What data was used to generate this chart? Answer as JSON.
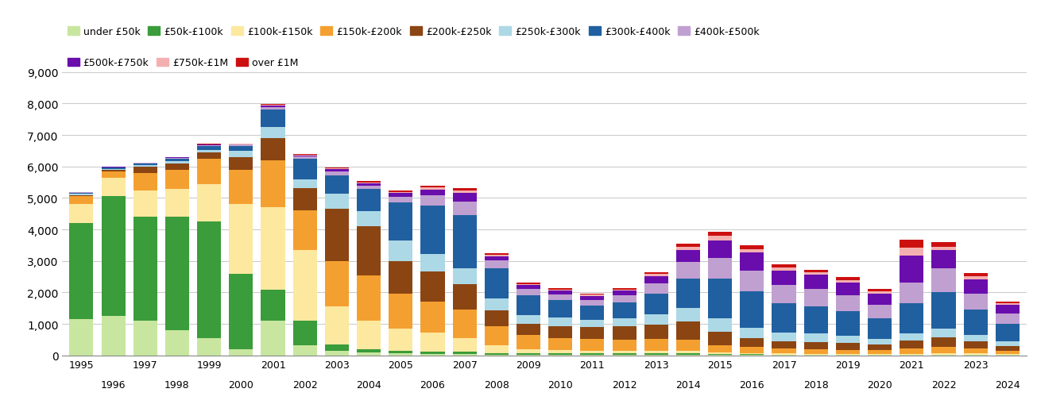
{
  "years": [
    1995,
    1996,
    1997,
    1998,
    1999,
    2000,
    2001,
    2002,
    2003,
    2004,
    2005,
    2006,
    2007,
    2008,
    2009,
    2010,
    2011,
    2012,
    2013,
    2014,
    2015,
    2016,
    2017,
    2018,
    2019,
    2020,
    2021,
    2022,
    2023,
    2024
  ],
  "categories": [
    "under £50k",
    "£50k-£100k",
    "£100k-£150k",
    "£150k-£200k",
    "£200k-£250k",
    "£250k-£300k",
    "£300k-£400k",
    "£400k-£500k",
    "£500k-£750k",
    "£750k-£1M",
    "over £1M"
  ],
  "colors": [
    "#c8e6a0",
    "#3a9c3a",
    "#fde8a0",
    "#f4a030",
    "#8b4513",
    "#add8e6",
    "#2060a0",
    "#c0a0d0",
    "#6a0dad",
    "#f4b0b0",
    "#cc1010"
  ],
  "data": {
    "under £50k": [
      1150,
      1250,
      1100,
      800,
      550,
      200,
      1100,
      330,
      150,
      90,
      70,
      50,
      50,
      20,
      20,
      20,
      20,
      20,
      20,
      20,
      20,
      20,
      10,
      10,
      10,
      10,
      10,
      10,
      10,
      10
    ],
    "£50k-£100k": [
      3050,
      3800,
      3300,
      3600,
      3700,
      2400,
      1000,
      780,
      200,
      110,
      80,
      70,
      60,
      50,
      40,
      40,
      40,
      40,
      40,
      40,
      30,
      30,
      20,
      20,
      20,
      20,
      20,
      20,
      20,
      20
    ],
    "£100k-£150k": [
      600,
      600,
      850,
      900,
      1200,
      2200,
      2600,
      2250,
      1200,
      900,
      700,
      600,
      450,
      250,
      130,
      100,
      80,
      80,
      80,
      90,
      50,
      30,
      30,
      20,
      20,
      20,
      20,
      30,
      30,
      10
    ],
    "£150k-£200k": [
      250,
      200,
      550,
      600,
      800,
      1100,
      1500,
      1250,
      1450,
      1450,
      1100,
      1000,
      900,
      600,
      450,
      400,
      380,
      360,
      380,
      360,
      220,
      190,
      160,
      150,
      130,
      110,
      160,
      200,
      150,
      100
    ],
    "£200k-£250k": [
      50,
      50,
      200,
      200,
      200,
      400,
      700,
      700,
      1650,
      1550,
      1050,
      950,
      800,
      500,
      370,
      380,
      370,
      420,
      470,
      570,
      430,
      280,
      240,
      230,
      210,
      180,
      270,
      320,
      230,
      160
    ],
    "£250k-£300k": [
      30,
      30,
      50,
      60,
      80,
      200,
      350,
      280,
      480,
      480,
      650,
      550,
      500,
      380,
      260,
      260,
      230,
      260,
      320,
      420,
      430,
      330,
      260,
      260,
      230,
      190,
      230,
      280,
      200,
      140
    ],
    "£300k-£400k": [
      40,
      40,
      40,
      80,
      120,
      150,
      550,
      650,
      600,
      700,
      1200,
      1550,
      1700,
      980,
      650,
      560,
      470,
      500,
      650,
      950,
      1250,
      1150,
      940,
      860,
      780,
      660,
      950,
      1150,
      810,
      560
    ],
    "£400k-£500k": [
      10,
      10,
      20,
      30,
      30,
      40,
      90,
      75,
      110,
      120,
      190,
      320,
      420,
      230,
      190,
      180,
      180,
      230,
      330,
      520,
      660,
      660,
      570,
      560,
      510,
      420,
      660,
      760,
      520,
      330
    ],
    "£500k-£750k": [
      10,
      10,
      10,
      15,
      15,
      15,
      45,
      45,
      75,
      75,
      115,
      185,
      280,
      140,
      120,
      120,
      120,
      140,
      230,
      380,
      570,
      570,
      475,
      450,
      400,
      360,
      850,
      570,
      450,
      280
    ],
    "£750k-£1M": [
      5,
      5,
      5,
      5,
      10,
      10,
      20,
      20,
      28,
      28,
      38,
      55,
      75,
      48,
      38,
      38,
      38,
      48,
      65,
      95,
      140,
      115,
      95,
      85,
      85,
      75,
      265,
      120,
      95,
      55
    ],
    "over £1M": [
      5,
      5,
      5,
      5,
      10,
      10,
      20,
      20,
      28,
      28,
      38,
      55,
      75,
      48,
      38,
      38,
      38,
      48,
      65,
      95,
      140,
      115,
      95,
      85,
      85,
      75,
      240,
      140,
      95,
      55
    ]
  },
  "ylim": [
    0,
    9000
  ],
  "yticks": [
    0,
    1000,
    2000,
    3000,
    4000,
    5000,
    6000,
    7000,
    8000,
    9000
  ],
  "background_color": "#ffffff",
  "grid_color": "#cccccc",
  "legend_ncol_row1": 8,
  "legend_ncol_row2": 4
}
